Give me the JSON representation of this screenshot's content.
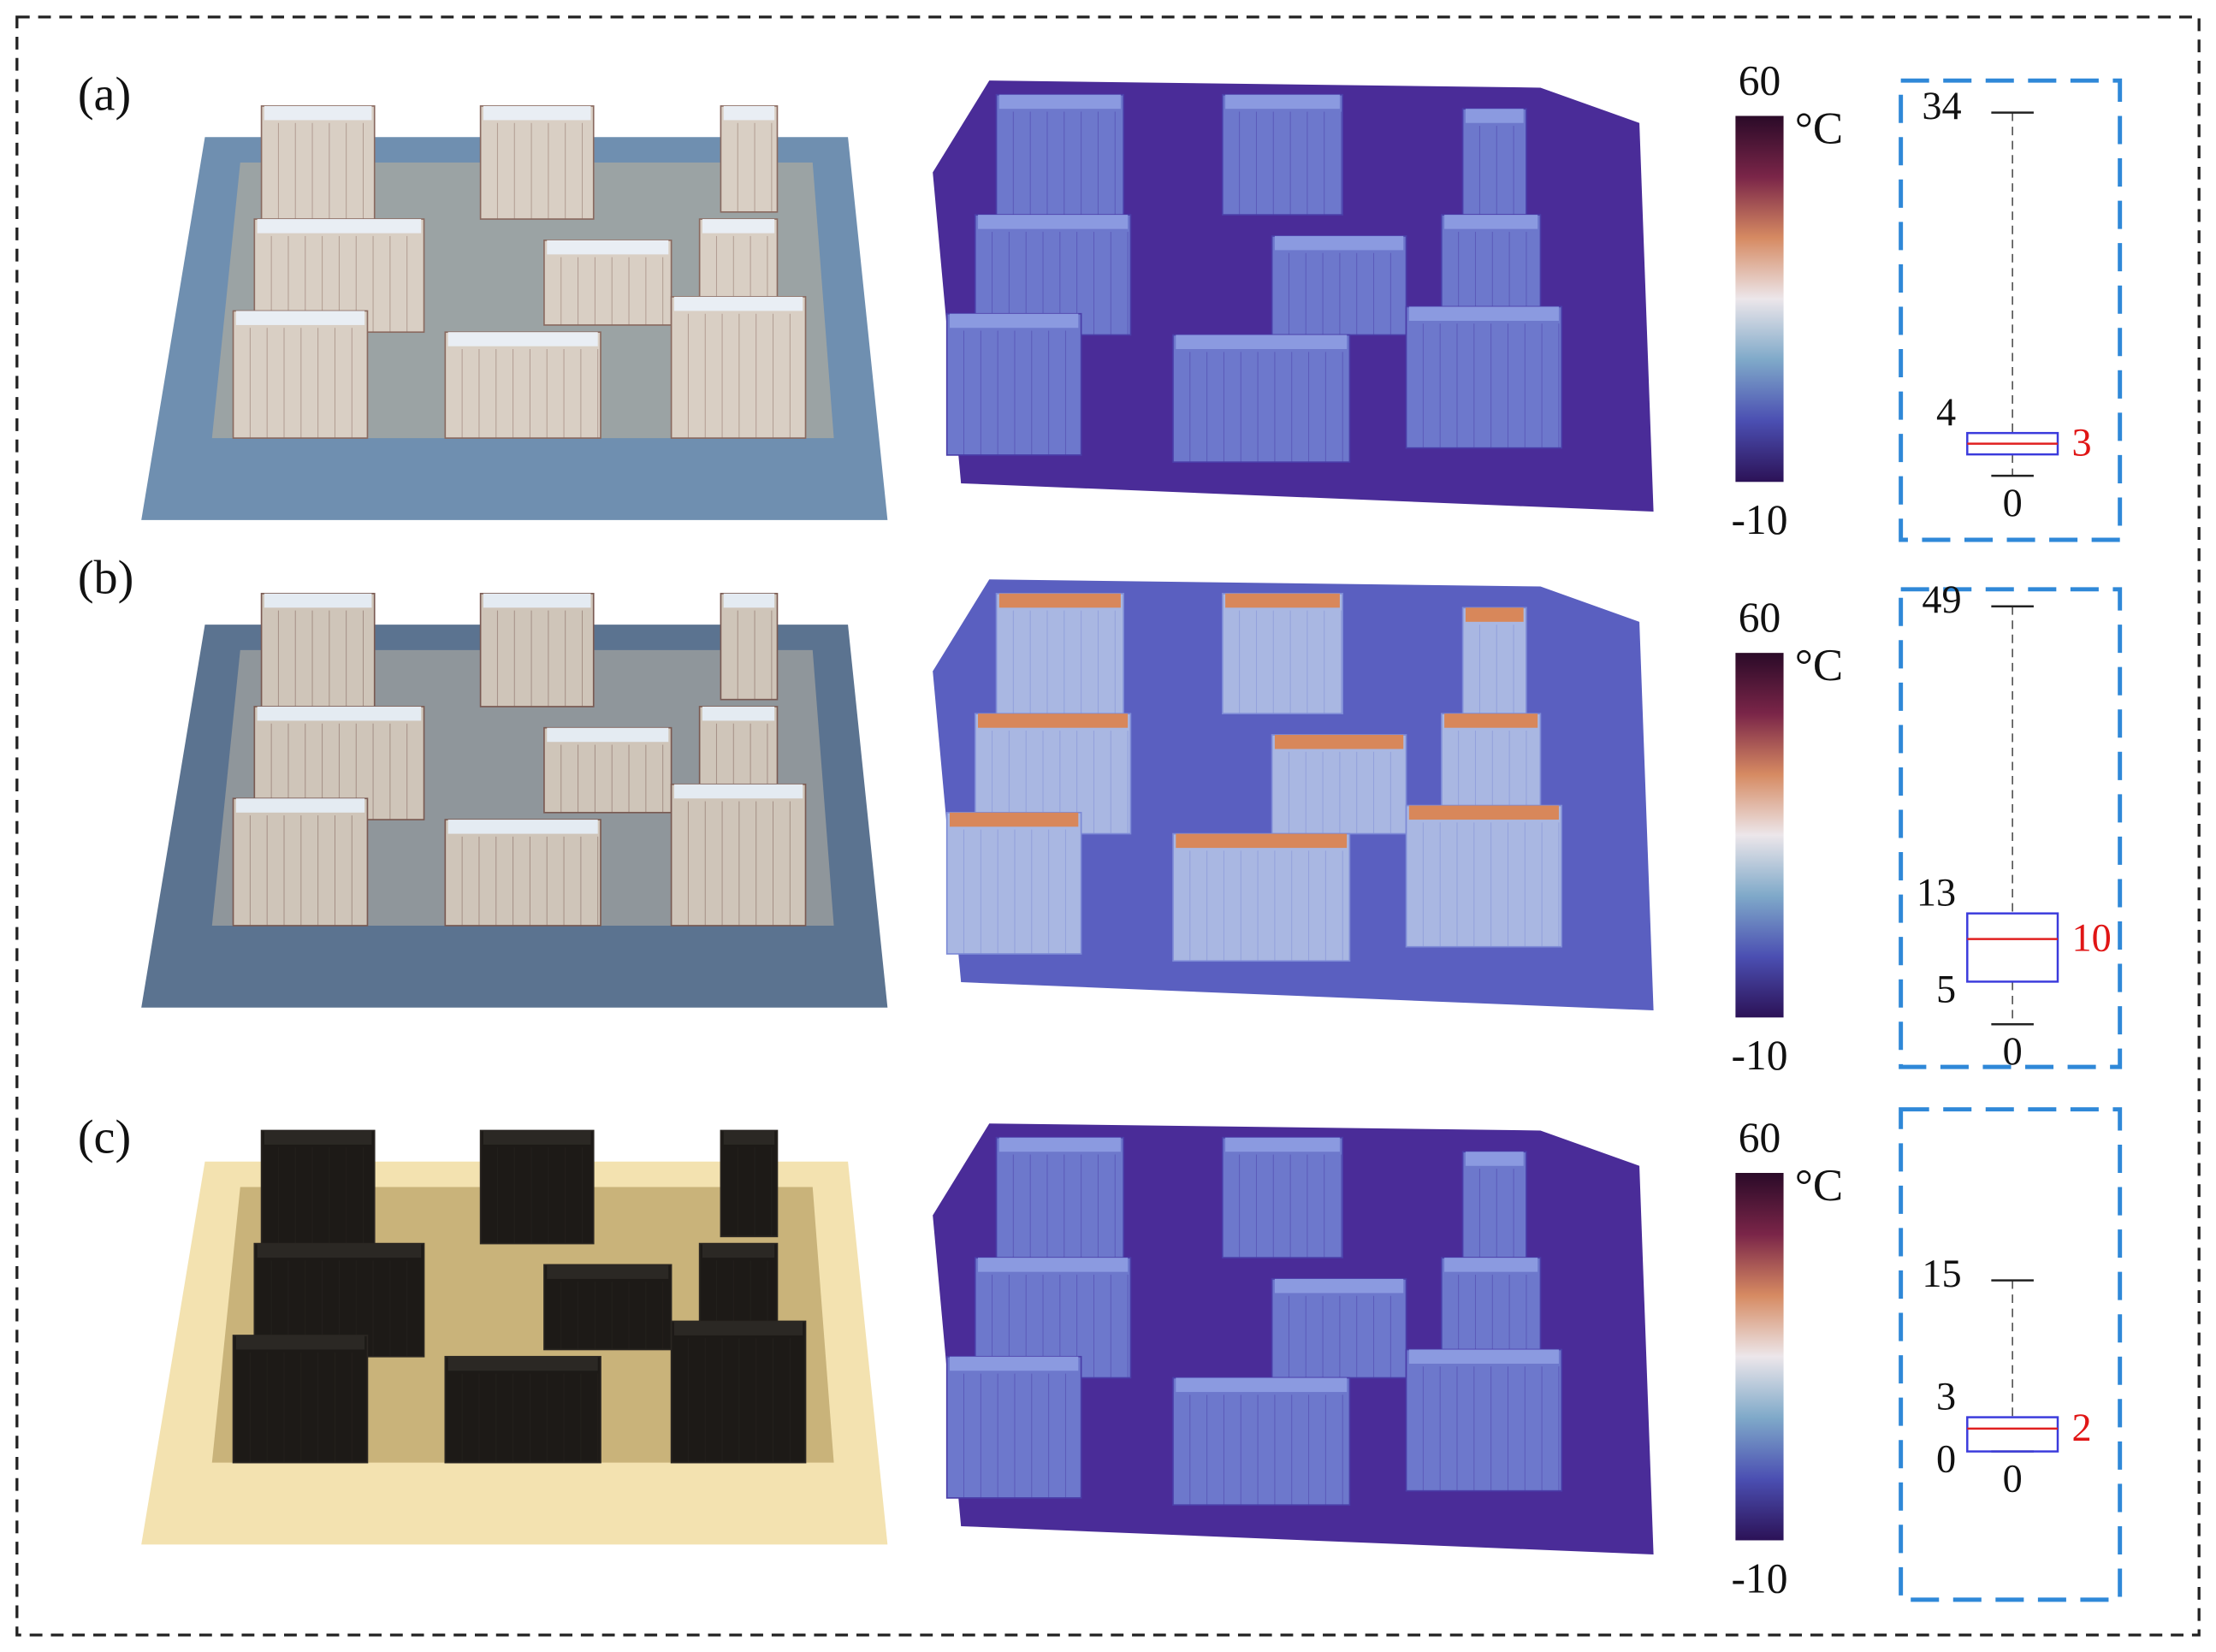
{
  "panels": [
    {
      "label": "(a)",
      "colorbar": {
        "range": [
          -10,
          60
        ],
        "ticks": [
          60,
          -10
        ],
        "unit": "°C",
        "colors": [
          "#2a0a28",
          "#7a2548",
          "#d68a62",
          "#ece6ea",
          "#7fa9c9",
          "#4b4fb2",
          "#2c1257"
        ]
      },
      "boxplot": {
        "max": 34,
        "q3": 4,
        "median": 3,
        "q1": 2,
        "min": 0,
        "ylim": [
          -6,
          37
        ],
        "unlabeled": [
          "q1"
        ]
      }
    },
    {
      "label": "(b)",
      "colorbar": {
        "range": [
          -10,
          60
        ],
        "ticks": [
          60,
          -10
        ],
        "unit": "°C",
        "colors": [
          "#2a0a28",
          "#7a2548",
          "#d68a62",
          "#ece6ea",
          "#7fa9c9",
          "#4b4fb2",
          "#2c1257"
        ]
      },
      "boxplot": {
        "max": 49,
        "q3": 13,
        "median": 10,
        "q1": 5,
        "min": 0,
        "ylim": [
          -5,
          51
        ],
        "unlabeled": []
      }
    },
    {
      "label": "(c)",
      "colorbar": {
        "range": [
          -10,
          60
        ],
        "ticks": [
          60,
          -10
        ],
        "unit": "°C",
        "colors": [
          "#2a0a28",
          "#7a2548",
          "#d68a62",
          "#ece6ea",
          "#7fa9c9",
          "#4b4fb2",
          "#2c1257"
        ]
      },
      "boxplot": {
        "max": 15,
        "q3": 3,
        "median": 2,
        "q1": 0,
        "min": 0,
        "ylim": [
          -13,
          30
        ],
        "unlabeled": []
      }
    }
  ]
}
